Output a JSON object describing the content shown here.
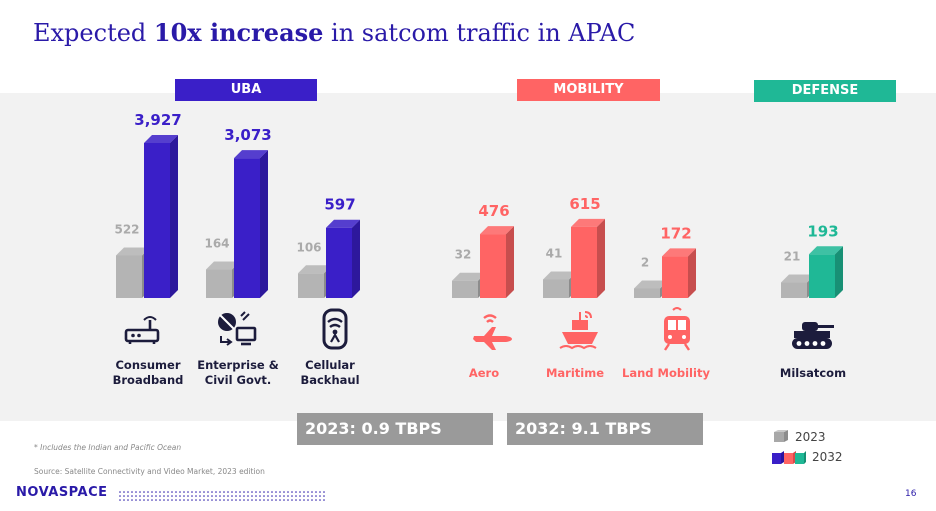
{
  "title": {
    "pre": "Expected ",
    "bold": "10x increase",
    "post": " in satcom traffic in APAC"
  },
  "groups": [
    {
      "label": "UBA",
      "color": "#3a1fc8"
    },
    {
      "label": "MOBILITY",
      "color": "#ff6464"
    },
    {
      "label": "DEFENSE",
      "color": "#1fb896"
    }
  ],
  "chart_data": {
    "type": "bar",
    "categories": [
      "Consumer\nBroadband",
      "Enterprise &\nCivil Govt.",
      "Cellular\nBackhaul",
      "Aero",
      "Maritime",
      "Land Mobility",
      "Milsatcom"
    ],
    "category_groups": [
      "UBA",
      "UBA",
      "UBA",
      "MOBILITY",
      "MOBILITY",
      "MOBILITY",
      "DEFENSE"
    ],
    "series": [
      {
        "name": "2023",
        "values": [
          522,
          164,
          106,
          32,
          41,
          2,
          21
        ]
      },
      {
        "name": "2032",
        "values": [
          3927,
          3073,
          597,
          476,
          615,
          172,
          193
        ]
      }
    ],
    "value_labels_2023": [
      "522",
      "164",
      "106",
      "32",
      "41",
      "2",
      "21"
    ],
    "value_labels_2032": [
      "3,927",
      "3,073",
      "597",
      "476",
      "615",
      "172",
      "193"
    ],
    "legend": [
      "2023",
      "2032"
    ],
    "legend_position": "bottom-right"
  },
  "totals": {
    "y2023": "2023: 0.9 TBPS",
    "y2032": "2032: 9.1 TBPS"
  },
  "colors": {
    "grey": "#b4b4b4",
    "uba": "#3a1fc8",
    "mobility": "#ff6464",
    "defense": "#1fb896",
    "title": "#2a1aa8"
  },
  "icons": [
    "router-icon",
    "satellite-computer-icon",
    "cell-tower-icon",
    "airplane-icon",
    "ship-icon",
    "train-icon",
    "tank-icon"
  ],
  "footnote": "* Includes the Indian and Pacific Ocean",
  "source": "Source: Satellite Connectivity and Video Market, 2023 edition",
  "logo": "NOVASPACE",
  "page_number": "16"
}
